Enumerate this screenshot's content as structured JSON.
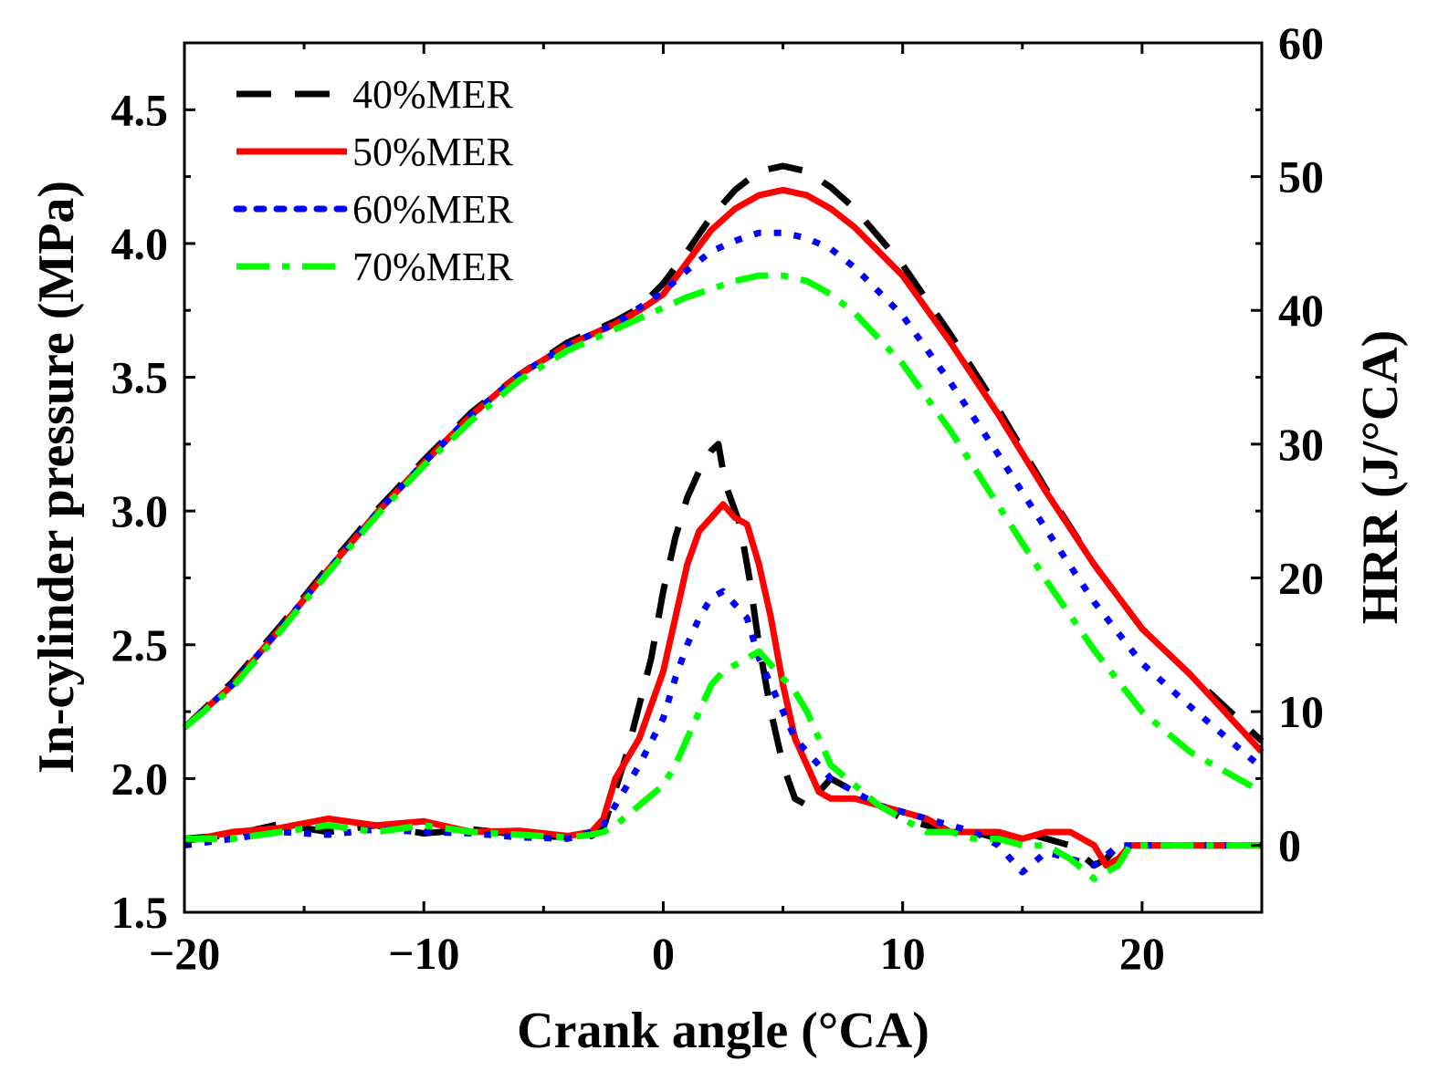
{
  "chart_data": {
    "type": "line",
    "title": "",
    "xlabel": "Crank angle (°CA)",
    "ylabel": "In-cylinder pressure (MPa)",
    "ylabel_right": "HRR (J/°CA)",
    "xlim": [
      -20,
      25
    ],
    "ylim": [
      1.5,
      4.75
    ],
    "ylim_right": [
      -5,
      60
    ],
    "x_ticks": [
      -20,
      -10,
      0,
      10,
      20
    ],
    "x_tick_labels": [
      "−20",
      "−10",
      "0",
      "10",
      "20"
    ],
    "y_ticks": [
      1.5,
      2.0,
      2.5,
      3.0,
      3.5,
      4.0,
      4.5
    ],
    "y_tick_labels": [
      "1.5",
      "2.0",
      "2.5",
      "3.0",
      "3.5",
      "4.0",
      "4.5"
    ],
    "y_right_ticks": [
      0,
      10,
      20,
      30,
      40,
      50,
      60
    ],
    "y_right_tick_labels": [
      "0",
      "10",
      "20",
      "30",
      "40",
      "50",
      "60"
    ],
    "legend": {
      "placement": "top-left",
      "entries": [
        "40%MER",
        "50%MER",
        "60%MER",
        "70%MER"
      ]
    },
    "series": [
      {
        "name": "40%MER",
        "color": "#000000",
        "style": "dash",
        "pressure": [
          [
            -20,
            2.19
          ],
          [
            -18,
            2.36
          ],
          [
            -16,
            2.57
          ],
          [
            -14,
            2.79
          ],
          [
            -12,
            3.0
          ],
          [
            -10,
            3.19
          ],
          [
            -8,
            3.37
          ],
          [
            -6,
            3.51
          ],
          [
            -4,
            3.63
          ],
          [
            -2,
            3.71
          ],
          [
            -1,
            3.76
          ],
          [
            0,
            3.85
          ],
          [
            1,
            3.97
          ],
          [
            2,
            4.1
          ],
          [
            3,
            4.2
          ],
          [
            4,
            4.27
          ],
          [
            5,
            4.29
          ],
          [
            6,
            4.27
          ],
          [
            7,
            4.21
          ],
          [
            8,
            4.13
          ],
          [
            10,
            3.92
          ],
          [
            12,
            3.66
          ],
          [
            14,
            3.38
          ],
          [
            16,
            3.08
          ],
          [
            18,
            2.8
          ],
          [
            20,
            2.56
          ],
          [
            22,
            2.39
          ],
          [
            25,
            2.14
          ]
        ],
        "hrr": [
          [
            -20,
            0.5
          ],
          [
            -18,
            0.8
          ],
          [
            -16,
            1.6
          ],
          [
            -14,
            1.0
          ],
          [
            -12,
            1.5
          ],
          [
            -10,
            0.9
          ],
          [
            -8,
            1.2
          ],
          [
            -6,
            0.8
          ],
          [
            -4,
            0.6
          ],
          [
            -3,
            0.7
          ],
          [
            -2.5,
            1.3
          ],
          [
            -1.5,
            7
          ],
          [
            -0.5,
            14
          ],
          [
            0,
            19
          ],
          [
            0.5,
            23
          ],
          [
            1,
            26
          ],
          [
            1.5,
            28
          ],
          [
            2,
            29.5
          ],
          [
            2.3,
            30
          ],
          [
            2.6,
            27
          ],
          [
            2.9,
            25.5
          ],
          [
            3.2,
            24
          ],
          [
            3.6,
            20
          ],
          [
            4,
            15
          ],
          [
            4.5,
            10
          ],
          [
            5,
            6
          ],
          [
            5.5,
            3.5
          ],
          [
            6,
            3
          ],
          [
            7,
            5
          ],
          [
            8,
            4
          ],
          [
            9,
            3
          ],
          [
            10,
            2
          ],
          [
            11,
            1.5
          ],
          [
            12,
            1
          ],
          [
            13,
            1
          ],
          [
            14,
            0.5
          ],
          [
            15,
            1
          ],
          [
            16,
            0.5
          ],
          [
            17,
            0
          ],
          [
            18,
            -1.5
          ],
          [
            18.5,
            -1
          ],
          [
            19,
            0
          ],
          [
            19.5,
            0
          ],
          [
            25,
            0
          ]
        ]
      },
      {
        "name": "50%MER",
        "color": "#ff0000",
        "style": "solid",
        "pressure": [
          [
            -20,
            2.19
          ],
          [
            -18,
            2.35
          ],
          [
            -16,
            2.56
          ],
          [
            -14,
            2.78
          ],
          [
            -12,
            2.99
          ],
          [
            -10,
            3.18
          ],
          [
            -8,
            3.36
          ],
          [
            -6,
            3.51
          ],
          [
            -4,
            3.62
          ],
          [
            -2,
            3.7
          ],
          [
            -1,
            3.75
          ],
          [
            0,
            3.81
          ],
          [
            1,
            3.93
          ],
          [
            2,
            4.05
          ],
          [
            3,
            4.13
          ],
          [
            4,
            4.18
          ],
          [
            5,
            4.2
          ],
          [
            6,
            4.18
          ],
          [
            7,
            4.13
          ],
          [
            8,
            4.06
          ],
          [
            10,
            3.88
          ],
          [
            12,
            3.63
          ],
          [
            14,
            3.36
          ],
          [
            16,
            3.07
          ],
          [
            18,
            2.8
          ],
          [
            20,
            2.56
          ],
          [
            22,
            2.39
          ],
          [
            25,
            2.1
          ]
        ],
        "hrr": [
          [
            -20,
            0.3
          ],
          [
            -18,
            1.0
          ],
          [
            -16,
            1.3
          ],
          [
            -14,
            2.0
          ],
          [
            -12,
            1.5
          ],
          [
            -10,
            1.8
          ],
          [
            -8,
            1.0
          ],
          [
            -6,
            1.1
          ],
          [
            -4,
            0.7
          ],
          [
            -3,
            1.0
          ],
          [
            -2.5,
            2.0
          ],
          [
            -2,
            5
          ],
          [
            -1,
            8
          ],
          [
            0,
            13
          ],
          [
            0.5,
            17
          ],
          [
            1,
            21
          ],
          [
            1.5,
            23.5
          ],
          [
            2,
            24.5
          ],
          [
            2.5,
            25.5
          ],
          [
            3,
            24.5
          ],
          [
            3.5,
            24
          ],
          [
            4,
            21
          ],
          [
            4.5,
            17
          ],
          [
            5,
            12
          ],
          [
            5.5,
            8
          ],
          [
            6,
            6
          ],
          [
            6.5,
            4
          ],
          [
            7,
            3.5
          ],
          [
            8,
            3.5
          ],
          [
            9,
            3
          ],
          [
            10,
            2.5
          ],
          [
            11,
            2
          ],
          [
            12,
            1
          ],
          [
            13,
            1
          ],
          [
            14,
            1
          ],
          [
            15,
            0.5
          ],
          [
            16,
            1
          ],
          [
            17,
            1
          ],
          [
            18,
            0
          ],
          [
            18.5,
            -1.5
          ],
          [
            19,
            -1
          ],
          [
            19.5,
            0
          ],
          [
            25,
            0
          ]
        ]
      },
      {
        "name": "60%MER",
        "color": "#0000ff",
        "style": "dot",
        "pressure": [
          [
            -20,
            2.19
          ],
          [
            -18,
            2.35
          ],
          [
            -16,
            2.56
          ],
          [
            -14,
            2.78
          ],
          [
            -12,
            2.99
          ],
          [
            -10,
            3.18
          ],
          [
            -8,
            3.36
          ],
          [
            -6,
            3.51
          ],
          [
            -4,
            3.62
          ],
          [
            -2,
            3.7
          ],
          [
            -1,
            3.76
          ],
          [
            0,
            3.82
          ],
          [
            1,
            3.9
          ],
          [
            2,
            3.97
          ],
          [
            3,
            4.01
          ],
          [
            4,
            4.04
          ],
          [
            5,
            4.04
          ],
          [
            6,
            4.02
          ],
          [
            7,
            3.98
          ],
          [
            8,
            3.91
          ],
          [
            10,
            3.73
          ],
          [
            12,
            3.48
          ],
          [
            14,
            3.21
          ],
          [
            16,
            2.93
          ],
          [
            18,
            2.66
          ],
          [
            20,
            2.43
          ],
          [
            22,
            2.27
          ],
          [
            25,
            2.04
          ]
        ],
        "hrr": [
          [
            -20,
            0
          ],
          [
            -18,
            0.5
          ],
          [
            -16,
            1.0
          ],
          [
            -14,
            0.8
          ],
          [
            -12,
            1.2
          ],
          [
            -10,
            1.0
          ],
          [
            -8,
            0.9
          ],
          [
            -6,
            0.6
          ],
          [
            -4,
            0.5
          ],
          [
            -3,
            1.0
          ],
          [
            -2.5,
            1.5
          ],
          [
            -2,
            3
          ],
          [
            -1,
            6
          ],
          [
            0,
            9.5
          ],
          [
            0.5,
            12.5
          ],
          [
            1,
            15
          ],
          [
            1.5,
            17
          ],
          [
            2,
            18.5
          ],
          [
            2.5,
            19
          ],
          [
            3,
            18
          ],
          [
            3.5,
            17
          ],
          [
            4,
            14
          ],
          [
            4.5,
            12
          ],
          [
            5,
            10
          ],
          [
            5.5,
            8
          ],
          [
            6,
            7
          ],
          [
            6.5,
            6
          ],
          [
            7,
            5
          ],
          [
            8,
            4
          ],
          [
            9,
            3
          ],
          [
            10,
            2.5
          ],
          [
            11,
            2
          ],
          [
            12,
            1.5
          ],
          [
            13,
            1
          ],
          [
            14,
            0
          ],
          [
            15,
            -2
          ],
          [
            16,
            -0.5
          ],
          [
            17,
            -1
          ],
          [
            18,
            -1.5
          ],
          [
            19,
            0
          ],
          [
            20,
            0
          ],
          [
            25,
            0
          ]
        ]
      },
      {
        "name": "70%MER",
        "color": "#00ff00",
        "style": "dashdot",
        "pressure": [
          [
            -20,
            2.19
          ],
          [
            -18,
            2.34
          ],
          [
            -16,
            2.55
          ],
          [
            -14,
            2.77
          ],
          [
            -12,
            2.98
          ],
          [
            -10,
            3.17
          ],
          [
            -8,
            3.34
          ],
          [
            -6,
            3.49
          ],
          [
            -4,
            3.6
          ],
          [
            -2,
            3.68
          ],
          [
            -1,
            3.72
          ],
          [
            0,
            3.76
          ],
          [
            1,
            3.8
          ],
          [
            2,
            3.83
          ],
          [
            3,
            3.86
          ],
          [
            4,
            3.88
          ],
          [
            5,
            3.88
          ],
          [
            6,
            3.86
          ],
          [
            7,
            3.81
          ],
          [
            8,
            3.74
          ],
          [
            10,
            3.55
          ],
          [
            12,
            3.3
          ],
          [
            14,
            3.02
          ],
          [
            16,
            2.74
          ],
          [
            18,
            2.48
          ],
          [
            20,
            2.25
          ],
          [
            22,
            2.1
          ],
          [
            25,
            1.95
          ]
        ],
        "hrr": [
          [
            -20,
            0.5
          ],
          [
            -18,
            0.5
          ],
          [
            -16,
            1.0
          ],
          [
            -14,
            1.5
          ],
          [
            -12,
            1.0
          ],
          [
            -10,
            1.5
          ],
          [
            -8,
            1.0
          ],
          [
            -6,
            0.8
          ],
          [
            -4,
            0.6
          ],
          [
            -3,
            0.8
          ],
          [
            -2.5,
            1.0
          ],
          [
            -2,
            1.5
          ],
          [
            -1,
            3
          ],
          [
            0,
            4.5
          ],
          [
            0.5,
            6
          ],
          [
            1,
            8
          ],
          [
            1.5,
            10
          ],
          [
            2,
            12
          ],
          [
            2.5,
            13
          ],
          [
            3,
            13.5
          ],
          [
            3.5,
            14
          ],
          [
            4,
            14.5
          ],
          [
            4.5,
            13.5
          ],
          [
            5,
            12.5
          ],
          [
            5.5,
            11.5
          ],
          [
            6,
            10
          ],
          [
            6.5,
            8
          ],
          [
            7,
            6
          ],
          [
            8,
            4.5
          ],
          [
            9,
            3
          ],
          [
            10,
            2
          ],
          [
            11,
            1
          ],
          [
            12,
            1
          ],
          [
            13,
            0.5
          ],
          [
            14,
            0.5
          ],
          [
            15,
            0
          ],
          [
            16,
            0
          ],
          [
            17,
            -1
          ],
          [
            18,
            -2.5
          ],
          [
            18.5,
            -2
          ],
          [
            19,
            -1.5
          ],
          [
            19.5,
            0
          ],
          [
            25,
            0
          ]
        ]
      }
    ]
  }
}
